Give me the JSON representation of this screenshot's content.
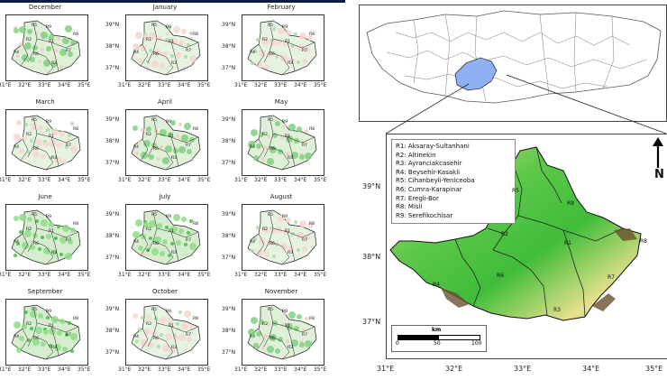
{
  "monthly_panels": [
    {
      "month": "December",
      "tint": "red",
      "col": 0,
      "row": 0
    },
    {
      "month": "January",
      "tint": "light",
      "col": 1,
      "row": 0
    },
    {
      "month": "February",
      "tint": "light",
      "col": 2,
      "row": 0
    },
    {
      "month": "March",
      "tint": "light",
      "col": 0,
      "row": 1
    },
    {
      "month": "April",
      "tint": "red",
      "col": 1,
      "row": 1
    },
    {
      "month": "May",
      "tint": "red",
      "col": 2,
      "row": 1
    },
    {
      "month": "June",
      "tint": "green",
      "col": 0,
      "row": 2
    },
    {
      "month": "July",
      "tint": "green",
      "col": 1,
      "row": 2
    },
    {
      "month": "August",
      "tint": "light",
      "col": 2,
      "row": 2
    },
    {
      "month": "September",
      "tint": "green",
      "col": 0,
      "row": 3
    },
    {
      "month": "October",
      "tint": "light",
      "col": 1,
      "row": 3
    },
    {
      "month": "November",
      "tint": "red",
      "col": 2,
      "row": 3
    }
  ],
  "panel_lat_ticks": [
    "39°N",
    "38°N",
    "37°N"
  ],
  "panel_lon_ticks": [
    "31°E",
    "32°E",
    "33°E",
    "34°E",
    "35°E"
  ],
  "panel_region_labels": [
    "R1",
    "R2",
    "R3",
    "R4",
    "R5",
    "R6",
    "R7",
    "R8",
    "R9"
  ],
  "main_map": {
    "legend": [
      "R1: Aksaray-Sultanhani",
      "R2: Altinekin",
      "R3: Ayranciakcasehir",
      "R4: Beysehir-Kasakli",
      "R5: Cihanbeyli-Yeniceoba",
      "R6: Cumra-Karapinar",
      "R7: Eregli-Bor",
      "R8: Misli",
      "R9: Serefikochisar"
    ],
    "lat_ticks": [
      "39°N",
      "38°N",
      "37°N"
    ],
    "lon_ticks": [
      "31°E",
      "32°E",
      "33°E",
      "34°E",
      "35°E"
    ],
    "region_labels": [
      "R1",
      "R2",
      "R3",
      "R4",
      "R5",
      "R6",
      "R7",
      "R8",
      "R9"
    ],
    "north_label": "N",
    "scalebar": {
      "unit": "km",
      "ticks": [
        "0",
        "50",
        "100"
      ]
    }
  },
  "colors": {
    "lowland": "#48c040",
    "highland": "#e8e48a",
    "peak": "#7a5c3a",
    "highlight": "#8fb0f2",
    "change_pos": "#2fbf2f",
    "change_neg": "#e07070"
  }
}
